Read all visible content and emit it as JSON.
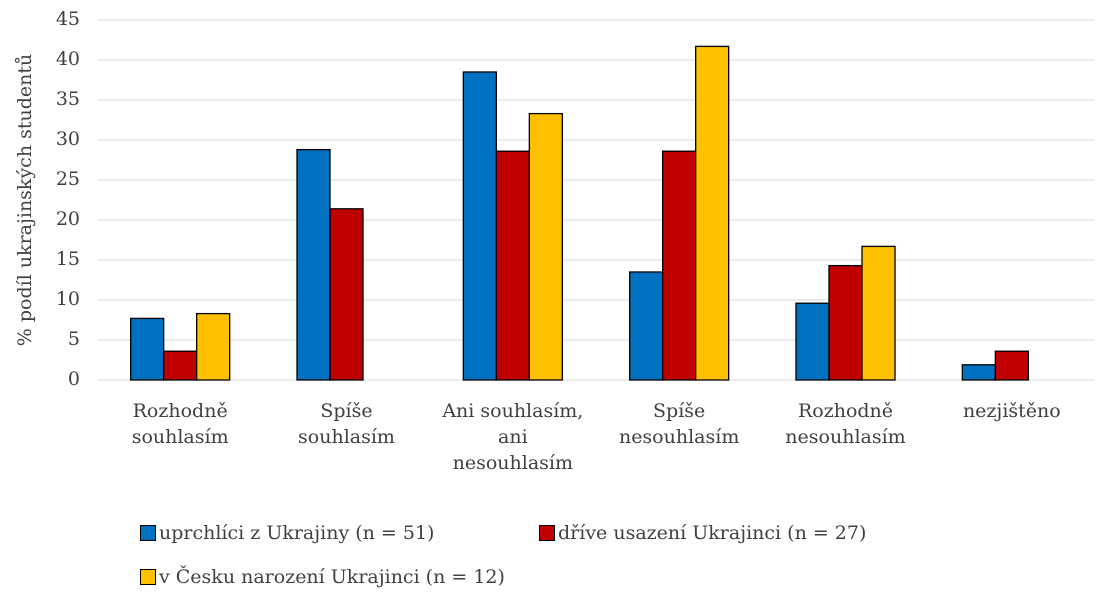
{
  "chart_data": {
    "type": "bar",
    "y_label": "% podíl ukrajinských studentů",
    "categories": [
      "Rozhodně\nsouhlasím",
      "Spíše\nsouhlasím",
      "Ani souhlasím,\nani\nnesouhlasím",
      "Spíše\nnesouhlasím",
      "Rozhodně\nnesouhlasím",
      "nezjištěno"
    ],
    "series": [
      {
        "name": "uprchlíci z Ukrajiny (n = 51)",
        "color": "#0070c0",
        "values": [
          7.7,
          28.8,
          38.5,
          13.5,
          9.6,
          1.9
        ]
      },
      {
        "name": "dříve usazení Ukrajinci (n = 27)",
        "color": "#c00000",
        "values": [
          3.6,
          21.4,
          28.6,
          28.6,
          14.3,
          3.6
        ]
      },
      {
        "name": "v Česku narození Ukrajinci (n = 12)",
        "color": "#ffc000",
        "values": [
          8.3,
          0,
          33.3,
          41.7,
          16.7,
          0
        ]
      }
    ],
    "ylim": [
      0,
      45
    ],
    "yticks": [
      0,
      5,
      10,
      15,
      20,
      25,
      30,
      35,
      40,
      45
    ],
    "grid": true,
    "legend": "bottom"
  }
}
